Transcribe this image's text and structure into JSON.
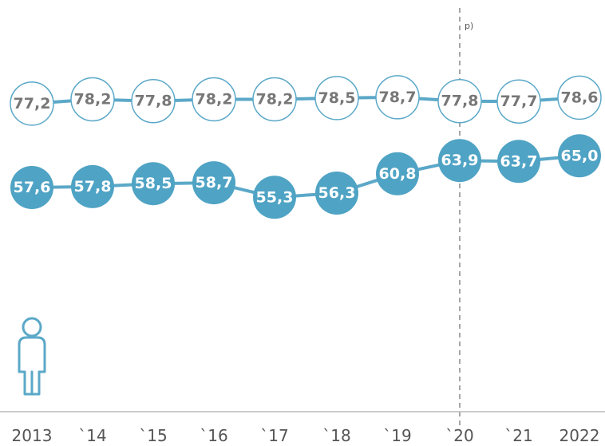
{
  "chart_data": {
    "type": "line",
    "categories": [
      "2013",
      "`14",
      "`15",
      "`16",
      "`17",
      "`18",
      "`19",
      "`20",
      "`21",
      "2022"
    ],
    "series": [
      {
        "values": [
          77.2,
          78.2,
          77.8,
          78.2,
          78.2,
          78.5,
          78.7,
          77.8,
          77.7,
          78.6
        ],
        "labels": [
          "77,2",
          "78,2",
          "77,8",
          "78,2",
          "78,2",
          "78,5",
          "78,7",
          "77,8",
          "77,7",
          "78,6"
        ],
        "style": "hollow"
      },
      {
        "values": [
          57.6,
          57.8,
          58.5,
          58.7,
          55.3,
          56.3,
          60.8,
          63.9,
          63.7,
          65.0
        ],
        "labels": [
          "57,6",
          "57,8",
          "58,5",
          "58,7",
          "55,3",
          "56,3",
          "60,8",
          "63,9",
          "63,7",
          "65,0"
        ],
        "style": "filled"
      }
    ],
    "marker_line": {
      "at": "`20",
      "label": "p)"
    },
    "grid": false,
    "colors": {
      "line": "#5ba8c8",
      "fill": "#4fa3c4",
      "hollow_text": "#777777",
      "filled_text": "#ffffff",
      "axis": "#bbbbbb",
      "marker": "#888888"
    },
    "icon": "person-icon"
  }
}
